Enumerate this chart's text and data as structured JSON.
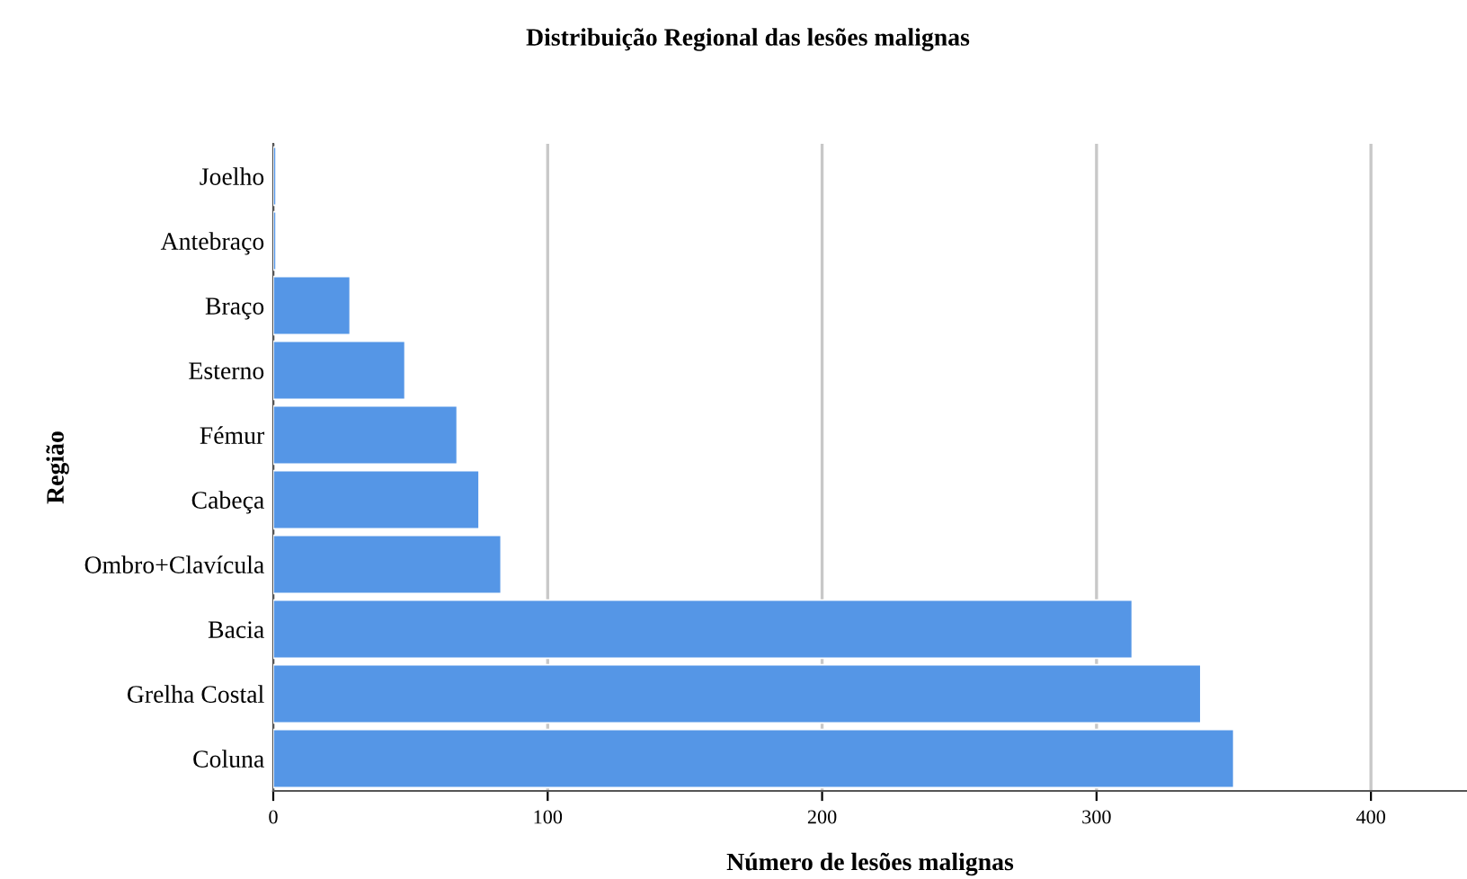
{
  "chart_data": {
    "type": "bar",
    "orientation": "horizontal",
    "title": "Distribuição Regional das lesões malignas",
    "xlabel": "Número de lesões malignas",
    "ylabel": "Região",
    "categories": [
      "Joelho",
      "Antebraço",
      "Braço",
      "Esterno",
      "Fémur",
      "Cabeça",
      "Ombro+Clavícula",
      "Bacia",
      "Grelha Costal",
      "Coluna"
    ],
    "values": [
      1,
      1,
      28,
      48,
      67,
      75,
      83,
      313,
      338,
      350
    ],
    "color": "#5596e6",
    "xlim": [
      0,
      435
    ],
    "xticks": [
      0,
      100,
      200,
      300,
      400
    ],
    "grid": "x",
    "legend": false
  }
}
